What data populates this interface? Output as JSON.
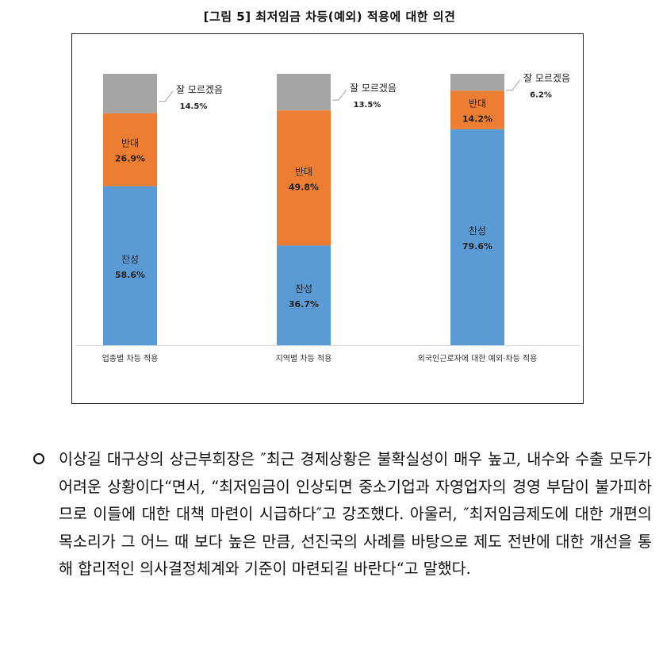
{
  "figure_title": "[그림 5] 최저임금 차등(예외) 적용에 대한 의견",
  "colors": {
    "agree": "#5b9bd5",
    "oppose": "#ed7d31",
    "unsure": "#a5a5a5"
  },
  "chart_data": {
    "type": "bar",
    "stacked": true,
    "title": "[그림 5] 최저임금 차등(예외) 적용에 대한 의견",
    "categories": [
      "업종별 차등 적용",
      "지역별 차등 적용",
      "외국인근로자에 대한 예외·차등 적용"
    ],
    "series": [
      {
        "name": "찬성",
        "values": [
          58.6,
          36.7,
          79.6
        ],
        "labels": [
          "58.6%",
          "36.7%",
          "79.6%"
        ]
      },
      {
        "name": "반대",
        "values": [
          26.9,
          49.8,
          14.2
        ],
        "labels": [
          "26.9%",
          "49.8%",
          "14.2%"
        ]
      },
      {
        "name": "잘 모르겠음",
        "values": [
          14.5,
          13.5,
          6.2
        ],
        "labels": [
          "14.5%",
          "13.5%",
          "6.2%"
        ]
      }
    ],
    "ylim": [
      0,
      100
    ],
    "grid": false,
    "legend": "none"
  },
  "paragraph": "이상길 대구상의 상근부회장은 ″최근 경제상황은 불확실성이 매우 높고, 내수와 수출 모두가 어려운 상황이다“면서, “최저임금이 인상되면 중소기업과 자영업자의 경영 부담이 불가피하므로 이들에 대한 대책 마련이 시급하다″고 강조했다. 아울러, ″최저임금제도에 대한 개편의 목소리가 그 어느 때 보다 높은 만큼, 선진국의 사례를 바탕으로 제도 전반에 대한 개선을 통해 합리적인 의사결정체계와 기준이 마련되길 바란다“고 말했다."
}
